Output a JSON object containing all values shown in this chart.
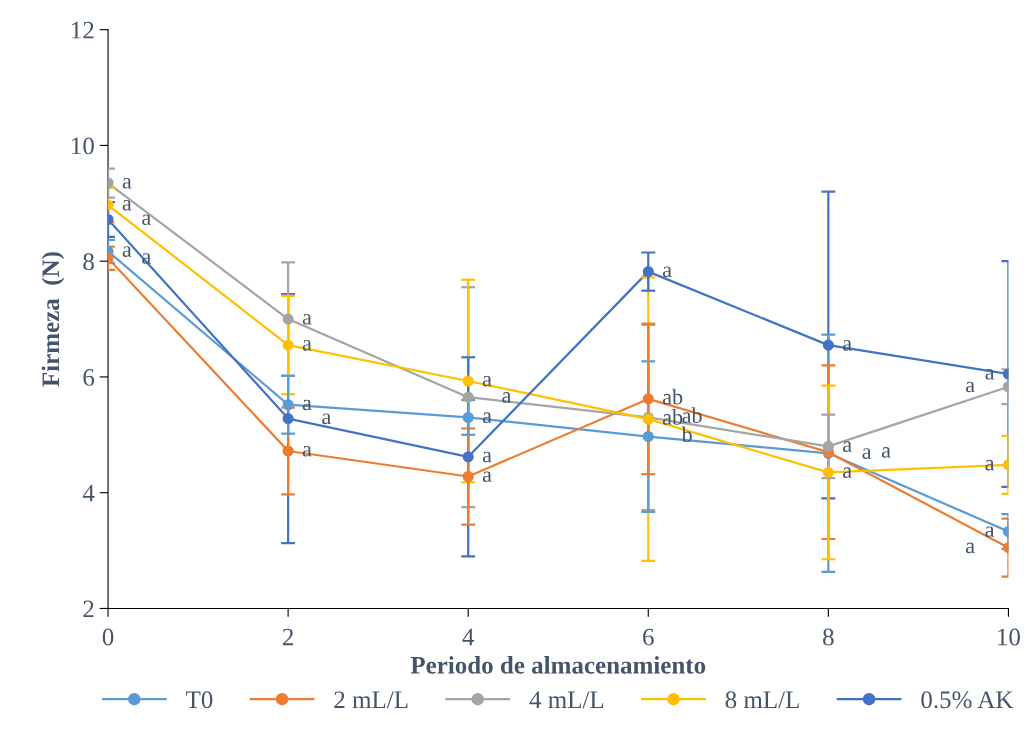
{
  "chart_data": {
    "type": "line",
    "xlabel": "Periodo de almacenamiento",
    "ylabel": "Firmeza  (N)",
    "x": [
      0,
      2,
      4,
      6,
      8,
      10
    ],
    "series": [
      {
        "name": "T0",
        "color": "#5b9bd5",
        "values": [
          8.17,
          5.52,
          5.3,
          4.97,
          4.68,
          3.33
        ],
        "errors": [
          0.2,
          0.5,
          0.3,
          1.3,
          2.05,
          0.3
        ]
      },
      {
        "name": "2 mL/L",
        "color": "#ed7d31",
        "values": [
          8.05,
          4.72,
          4.28,
          5.62,
          4.7,
          3.05
        ],
        "errors": [
          0.2,
          0.75,
          0.83,
          1.3,
          1.5,
          0.5
        ]
      },
      {
        "name": "4 mL/L",
        "color": "#a5a5a5",
        "values": [
          9.35,
          7.0,
          5.65,
          5.3,
          4.8,
          5.83
        ],
        "errors": [
          0.25,
          0.98,
          1.9,
          1.6,
          0.55,
          0.3
        ]
      },
      {
        "name": "8 mL/L",
        "color": "#ffc000",
        "values": [
          8.97,
          6.55,
          5.93,
          5.27,
          4.35,
          4.48
        ],
        "errors": [
          0.3,
          0.85,
          1.75,
          2.45,
          1.5,
          0.5
        ]
      },
      {
        "name": "0.5% AK",
        "color": "#4472c4",
        "values": [
          8.72,
          5.28,
          4.62,
          7.82,
          6.55,
          6.05
        ],
        "errors": [
          0.3,
          2.15,
          1.72,
          0.33,
          2.65,
          1.95
        ]
      }
    ],
    "xlim": [
      0,
      10
    ],
    "xticks": [
      0,
      2,
      4,
      6,
      8,
      10
    ],
    "ylim": [
      2,
      12
    ],
    "yticks": [
      2,
      4,
      6,
      8,
      10,
      12
    ],
    "grid": false,
    "legend": "bottom",
    "marker": "circle",
    "line_style": "solid",
    "annotations": [
      {
        "text": "a",
        "x": 0,
        "y": 9.35
      },
      {
        "text": "a",
        "x": 0,
        "y": 8.97
      },
      {
        "text": "a",
        "x": 0,
        "y": 8.72
      },
      {
        "text": "a",
        "x": 0,
        "y": 8.17
      },
      {
        "text": "a",
        "x": 0,
        "y": 8.05
      },
      {
        "text": "a",
        "x": 2,
        "y": 7.0
      },
      {
        "text": "a",
        "x": 2,
        "y": 6.55
      },
      {
        "text": "a",
        "x": 2,
        "y": 5.52
      },
      {
        "text": "a",
        "x": 2,
        "y": 5.28
      },
      {
        "text": "a",
        "x": 2,
        "y": 4.72
      },
      {
        "text": "a",
        "x": 4,
        "y": 5.93
      },
      {
        "text": "a",
        "x": 4,
        "y": 5.65
      },
      {
        "text": "a",
        "x": 4,
        "y": 5.3
      },
      {
        "text": "a",
        "x": 4,
        "y": 4.62
      },
      {
        "text": "a",
        "x": 4,
        "y": 4.28
      },
      {
        "text": "a",
        "x": 6,
        "y": 7.82
      },
      {
        "text": "ab",
        "x": 6,
        "y": 5.62
      },
      {
        "text": "ab",
        "x": 6,
        "y": 5.27
      },
      {
        "text": "b",
        "x": 6,
        "y": 4.97
      },
      {
        "text": "ab",
        "x": 6,
        "y": 5.3
      },
      {
        "text": "a",
        "x": 8,
        "y": 6.55
      },
      {
        "text": "a",
        "x": 8,
        "y": 4.8
      },
      {
        "text": "a",
        "x": 8,
        "y": 4.68
      },
      {
        "text": "a",
        "x": 8,
        "y": 4.7
      },
      {
        "text": "a",
        "x": 8,
        "y": 4.35
      },
      {
        "text": "a",
        "x": 10,
        "y": 6.05
      },
      {
        "text": "a",
        "x": 10,
        "y": 5.83
      },
      {
        "text": "a",
        "x": 10,
        "y": 4.48
      },
      {
        "text": "a",
        "x": 10,
        "y": 3.33
      },
      {
        "text": "a",
        "x": 10,
        "y": 3.05
      }
    ]
  }
}
